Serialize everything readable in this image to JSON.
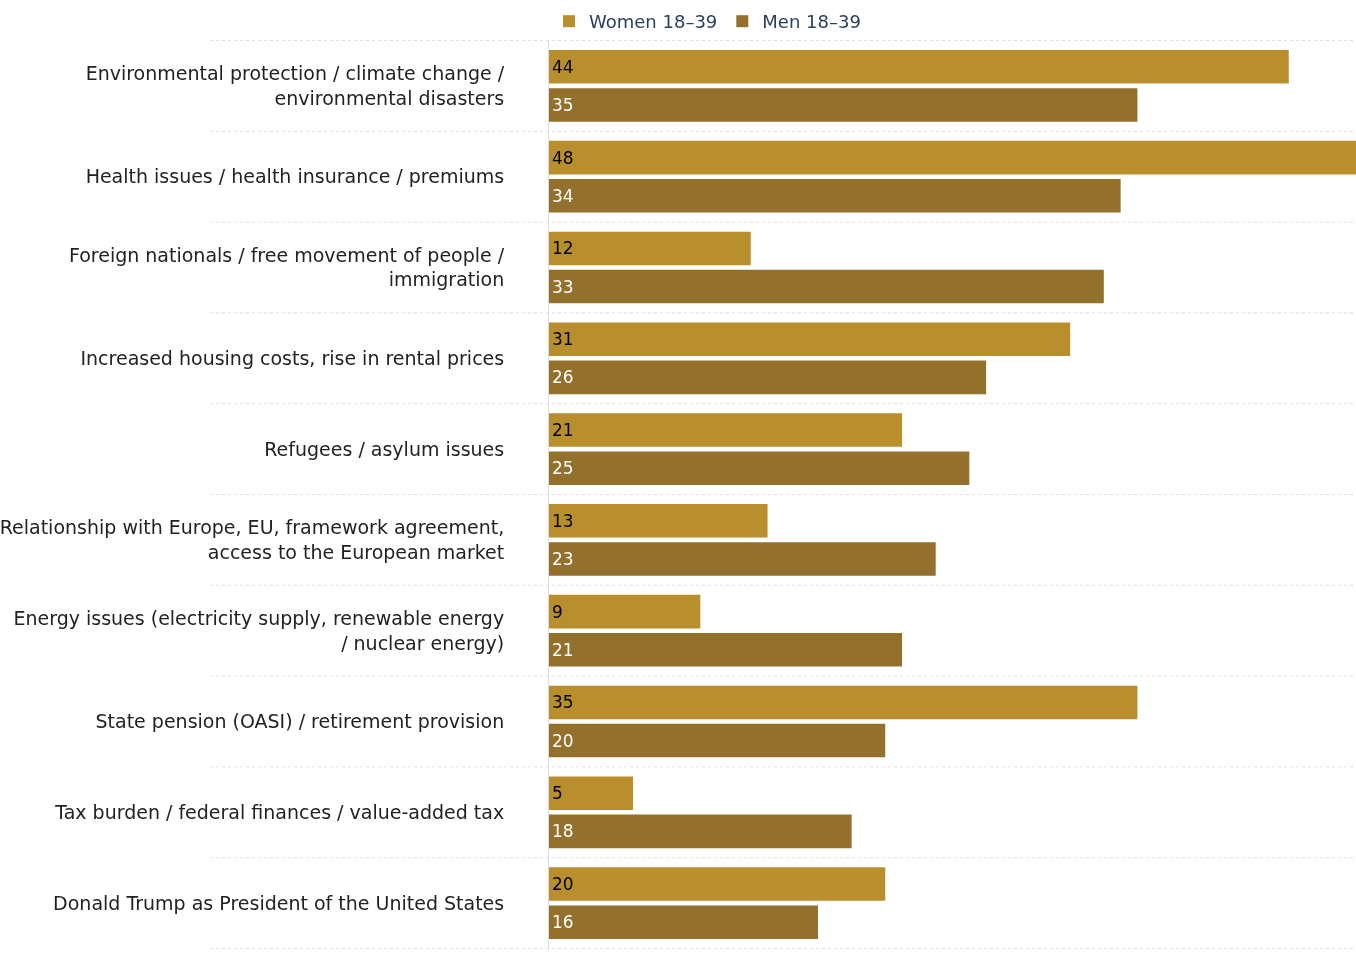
{
  "chart_data": {
    "type": "bar",
    "orientation": "horizontal",
    "categories": [
      "Environmental protection / climate change / environmental disasters",
      "Health issues / health insurance / premiums",
      "Foreign nationals / free movement of people / immigration",
      "Increased housing costs, rise in rental prices",
      "Refugees / asylum issues",
      "Relationship with Europe, EU, framework agreement, access to the European market",
      "Energy issues (electricity supply, renewable energy / nuclear energy)",
      "State pension (OASI) / retirement provision",
      "Tax burden / federal finances / value-added tax",
      "Donald Trump as President of the United States"
    ],
    "series": [
      {
        "name": "Women 18–39",
        "color": "#b98f2e",
        "values": [
          44,
          48,
          12,
          31,
          21,
          13,
          9,
          35,
          5,
          20
        ]
      },
      {
        "name": "Men 18–39",
        "color": "#94702d",
        "values": [
          35,
          34,
          33,
          26,
          25,
          23,
          21,
          20,
          18,
          16
        ]
      }
    ],
    "xlim": [
      0,
      48
    ],
    "data_labels": true,
    "tick_labels": "y",
    "legend": "top left"
  }
}
